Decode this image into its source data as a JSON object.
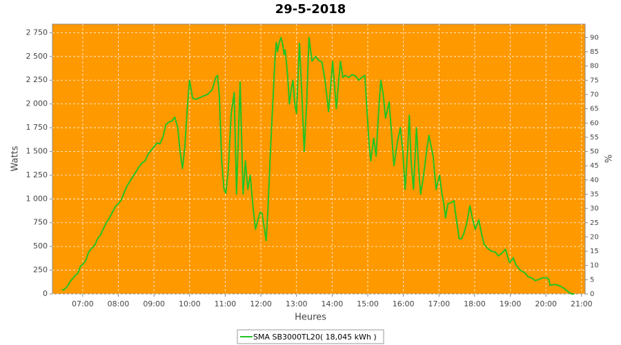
{
  "chart_data": {
    "type": "line",
    "title": "29-5-2018",
    "x_label": "Heures",
    "y_label": "Watts",
    "y2_label": "%",
    "background": "#ff9900",
    "grid": true,
    "xlim": [
      "06:09",
      "21:06"
    ],
    "xticks": [
      "07:00",
      "08:00",
      "09:00",
      "10:00",
      "11:00",
      "12:00",
      "13:00",
      "14:00",
      "15:00",
      "16:00",
      "17:00",
      "18:00",
      "19:00",
      "20:00",
      "21:00"
    ],
    "ylim": [
      0,
      2840
    ],
    "yticks": [
      0,
      250,
      500,
      750,
      {
        "value": 1000,
        "label": "1 000"
      },
      {
        "value": 1250,
        "label": "1 250"
      },
      {
        "value": 1500,
        "label": "1 500"
      },
      {
        "value": 1750,
        "label": "1 750"
      },
      {
        "value": 2000,
        "label": "2 000"
      },
      {
        "value": 2250,
        "label": "2 250"
      },
      {
        "value": 2500,
        "label": "2 500"
      },
      {
        "value": 2750,
        "label": "2 750"
      }
    ],
    "y2lim": [
      0,
      94.7
    ],
    "y2ticks": [
      0,
      5,
      10,
      15,
      20,
      25,
      30,
      35,
      40,
      45,
      50,
      55,
      60,
      65,
      70,
      75,
      80,
      85,
      90
    ],
    "legend": "bottom",
    "x": [
      "06:25",
      "06:28",
      "06:34",
      "06:40",
      "06:47",
      "06:52",
      "06:56",
      "07:00",
      "07:05",
      "07:10",
      "07:15",
      "07:20",
      "07:25",
      "07:30",
      "07:35",
      "07:40",
      "07:45",
      "07:50",
      "07:55",
      "08:00",
      "08:05",
      "08:10",
      "08:15",
      "08:20",
      "08:25",
      "08:30",
      "08:35",
      "08:40",
      "08:45",
      "08:50",
      "08:55",
      "09:00",
      "09:05",
      "09:10",
      "09:15",
      "09:20",
      "09:25",
      "09:30",
      "09:35",
      "09:40",
      "09:44",
      "09:48",
      "09:52",
      "09:56",
      "10:00",
      "10:05",
      "10:10",
      "10:15",
      "10:22",
      "10:30",
      "10:38",
      "10:44",
      "10:47",
      "10:50",
      "10:54",
      "10:58",
      "11:01",
      "11:05",
      "11:10",
      "11:15",
      "11:19",
      "11:25",
      "11:30",
      "11:34",
      "11:38",
      "11:42",
      "11:47",
      "11:51",
      "11:55",
      "11:59",
      "12:02",
      "12:06",
      "12:09",
      "12:12",
      "12:16",
      "12:20",
      "12:24",
      "12:26",
      "12:28",
      "12:31",
      "12:34",
      "12:37",
      "12:39",
      "12:41",
      "12:45",
      "12:48",
      "12:51",
      "12:54",
      "12:57",
      "13:00",
      "13:05",
      "13:09",
      "13:13",
      "13:17",
      "13:21",
      "13:26",
      "13:32",
      "13:37",
      "13:43",
      "13:48",
      "13:54",
      "14:01",
      "14:07",
      "14:14",
      "14:18",
      "14:22",
      "14:28",
      "14:34",
      "14:40",
      "14:45",
      "14:50",
      "14:55",
      "14:58",
      "15:02",
      "15:05",
      "15:10",
      "15:14",
      "15:18",
      "15:22",
      "15:26",
      "15:30",
      "15:36",
      "15:40",
      "15:44",
      "15:50",
      "15:55",
      "15:59",
      "16:03",
      "16:07",
      "16:10",
      "16:13",
      "16:17",
      "16:22",
      "16:26",
      "16:29",
      "16:33",
      "16:38",
      "16:43",
      "16:50",
      "16:55",
      "17:01",
      "17:05",
      "17:08",
      "17:11",
      "17:15",
      "17:20",
      "17:25",
      "17:30",
      "17:34",
      "17:38",
      "17:42",
      "17:47",
      "17:52",
      "17:56",
      "18:01",
      "18:07",
      "18:11",
      "18:16",
      "18:22",
      "18:28",
      "18:35",
      "18:40",
      "18:46",
      "18:52",
      "18:56",
      "18:59",
      "19:05",
      "19:10",
      "19:17",
      "19:25",
      "19:30",
      "19:36",
      "19:42",
      "19:47",
      "19:55",
      "20:02",
      "20:05",
      "20:07",
      "20:15",
      "20:22",
      "20:30",
      "20:38",
      "20:43",
      "20:48"
    ],
    "series": [
      {
        "name": "SMA SB3000TL20( 18,045 kWh )",
        "color": "#22c422",
        "values": [
          50,
          40,
          80,
          140,
          190,
          220,
          290,
          310,
          350,
          440,
          480,
          510,
          580,
          620,
          690,
          750,
          800,
          860,
          920,
          950,
          990,
          1070,
          1140,
          1190,
          1240,
          1290,
          1340,
          1380,
          1400,
          1470,
          1510,
          1550,
          1590,
          1580,
          1650,
          1780,
          1810,
          1820,
          1860,
          1750,
          1500,
          1320,
          1550,
          1950,
          2250,
          2060,
          2050,
          2060,
          2080,
          2100,
          2150,
          2280,
          2300,
          2100,
          1400,
          1100,
          1060,
          1300,
          1900,
          2120,
          1050,
          2230,
          1050,
          1400,
          1100,
          1250,
          900,
          680,
          780,
          860,
          850,
          680,
          560,
          900,
          1500,
          2000,
          2500,
          2650,
          2550,
          2650,
          2700,
          2620,
          2520,
          2570,
          2300,
          2000,
          2150,
          2250,
          2000,
          1900,
          2640,
          2100,
          1500,
          2000,
          2700,
          2450,
          2500,
          2460,
          2440,
          2250,
          1920,
          2450,
          1950,
          2450,
          2280,
          2300,
          2280,
          2310,
          2290,
          2250,
          2280,
          2300,
          2000,
          1600,
          1400,
          1640,
          1450,
          1900,
          2250,
          2100,
          1850,
          2020,
          1700,
          1350,
          1600,
          1750,
          1500,
          1100,
          1500,
          1880,
          1400,
          1100,
          1750,
          1300,
          1050,
          1200,
          1450,
          1670,
          1450,
          1100,
          1250,
          1050,
          950,
          800,
          950,
          960,
          980,
          750,
          580,
          580,
          640,
          750,
          930,
          800,
          680,
          780,
          650,
          520,
          480,
          450,
          440,
          400,
          430,
          470,
          380,
          330,
          380,
          300,
          250,
          220,
          180,
          170,
          140,
          150,
          170,
          170,
          150,
          90,
          100,
          90,
          60,
          20,
          0,
          0
        ]
      }
    ]
  }
}
